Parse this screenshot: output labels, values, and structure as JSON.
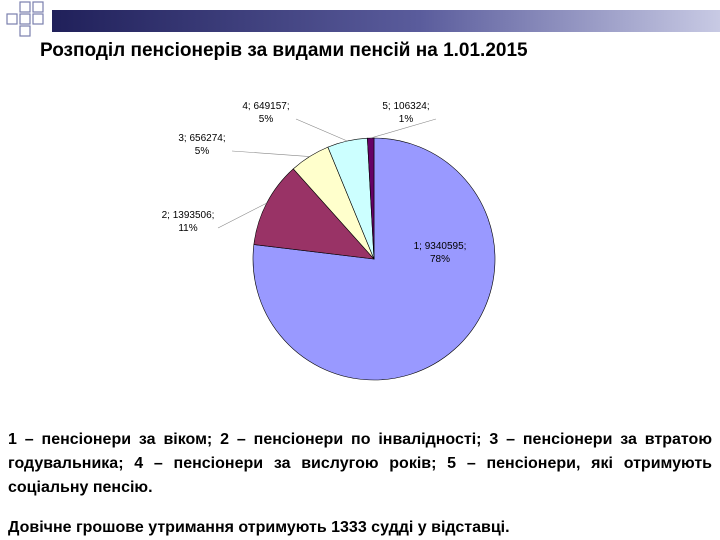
{
  "title": "Розподіл пенсіонерів за видами пенсій на 1.01.2015",
  "chart_data": {
    "type": "pie",
    "title": "",
    "slices": [
      {
        "category": "1",
        "value": 9340595,
        "percent": "78%",
        "color": "#9999ff"
      },
      {
        "category": "2",
        "value": 1393506,
        "percent": "11%",
        "color": "#993366"
      },
      {
        "category": "3",
        "value": 656274,
        "percent": "5%",
        "color": "#ffffcc"
      },
      {
        "category": "4",
        "value": 649157,
        "percent": "5%",
        "color": "#ccffff"
      },
      {
        "category": "5",
        "value": 106324,
        "percent": "1%",
        "color": "#660066"
      }
    ],
    "start_angle_deg": 0,
    "direction": "clockwise",
    "legend": "none",
    "data_labels": "category; value; percent"
  },
  "legend_text": "1 – пенсіонери за віком; 2 – пенсіонери по інвалідності; 3 – пенсіонери за втратою годувальника; 4 – пенсіонери за вислугою років; 5 – пенсіонери, які отримують соціальну пенсію.",
  "note_text": "Довічне грошове утримання отримують 1333 судді у відставці.",
  "colors": {
    "header_squares": "#ffffff",
    "header_square_border": "#7a7fae",
    "header_band": "#3c3f8c"
  }
}
